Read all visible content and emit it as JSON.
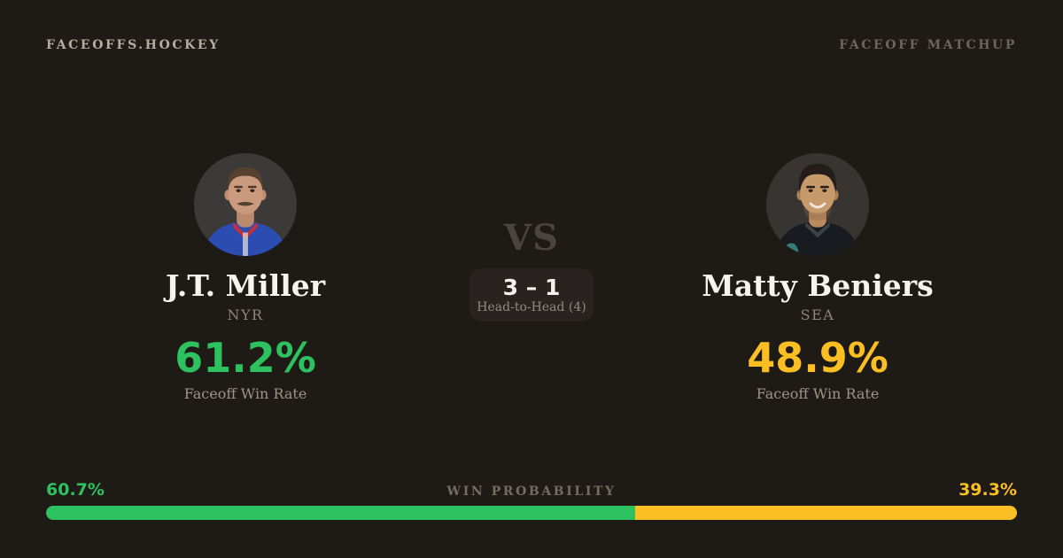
{
  "header": {
    "brand": "FACEOFFS.HOCKEY",
    "page_label": "FACEOFF MATCHUP"
  },
  "matchup": {
    "vs_label": "VS",
    "h2h_score": "3 – 1",
    "h2h_label": "Head-to-Head (4)"
  },
  "players": {
    "left": {
      "name": "J.T. Miller",
      "team": "NYR",
      "faceoff_win_rate": "61.2%",
      "stat_label": "Faceoff Win Rate",
      "win_probability_label": "60.7%",
      "accent_color": "#2ec15f"
    },
    "right": {
      "name": "Matty Beniers",
      "team": "SEA",
      "faceoff_win_rate": "48.9%",
      "stat_label": "Faceoff Win Rate",
      "win_probability_label": "39.3%",
      "accent_color": "#fbbe23"
    }
  },
  "probability_bar": {
    "label": "WIN PROBABILITY",
    "left_pct": 60.7,
    "right_pct": 39.3
  }
}
